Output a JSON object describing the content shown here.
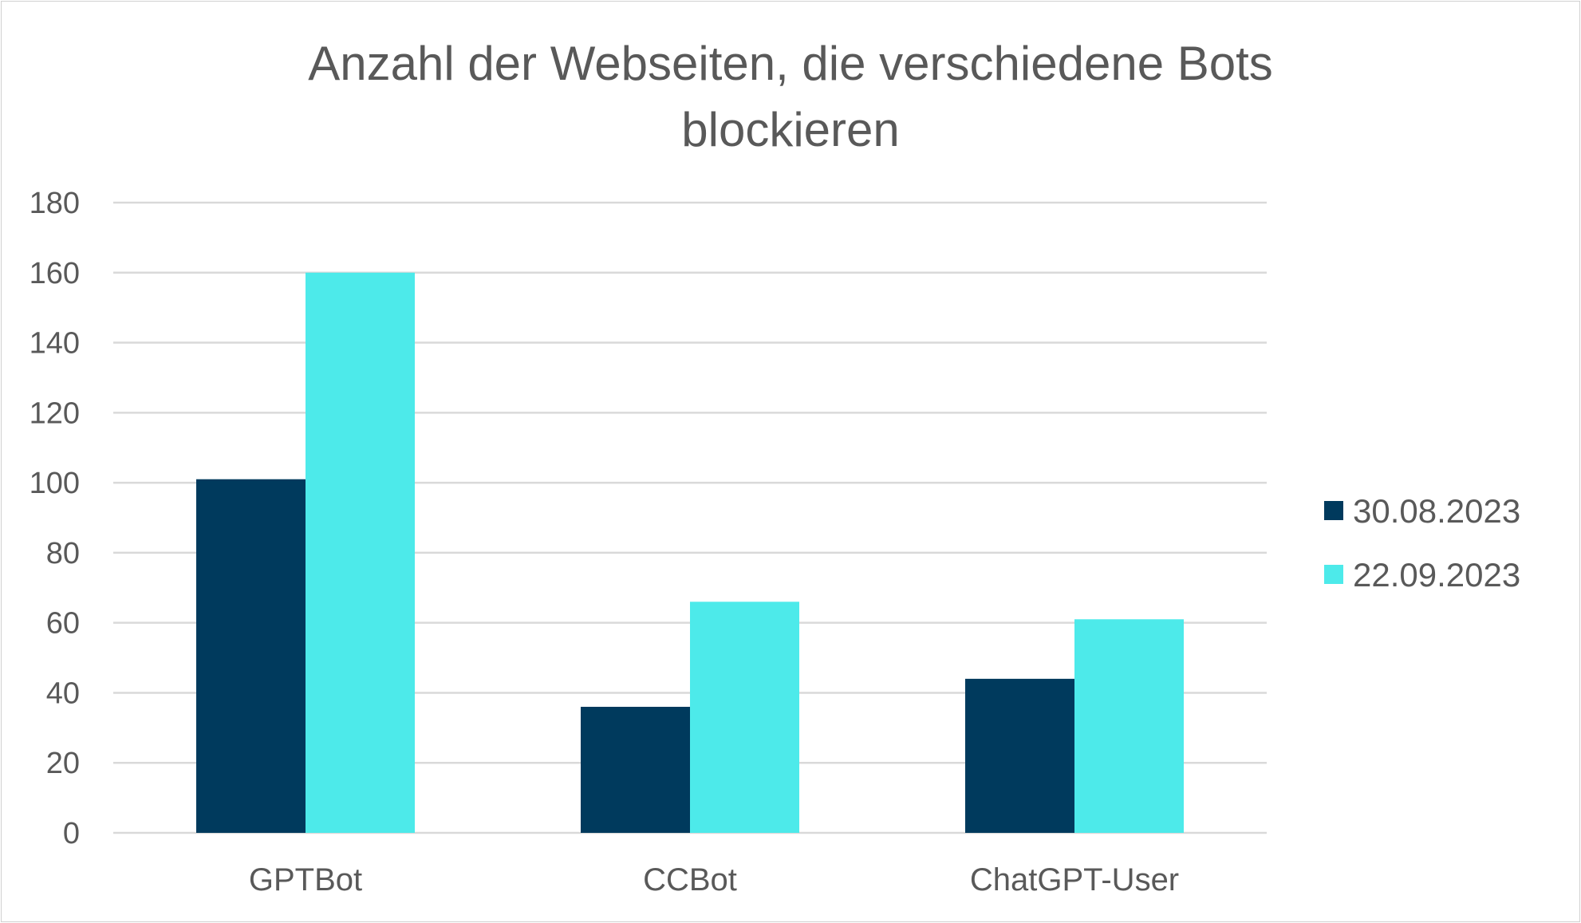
{
  "chart_data": {
    "type": "bar",
    "title": "Anzahl der Webseiten, die verschiedene Bots blockieren",
    "title_lines": [
      "Anzahl der Webseiten, die verschiedene Bots",
      "blockieren"
    ],
    "categories": [
      "GPTBot",
      "CCBot",
      "ChatGPT-User"
    ],
    "series": [
      {
        "name": "30.08.2023",
        "color": "#003a5d",
        "values": [
          101,
          36,
          44
        ]
      },
      {
        "name": "22.09.2023",
        "color": "#4deaea",
        "values": [
          160,
          66,
          61
        ]
      }
    ],
    "xlabel": "",
    "ylabel": "",
    "ylim": [
      0,
      180
    ],
    "yticks": [
      0,
      20,
      40,
      60,
      80,
      100,
      120,
      140,
      160,
      180
    ],
    "grid": true,
    "legend_position": "right"
  }
}
